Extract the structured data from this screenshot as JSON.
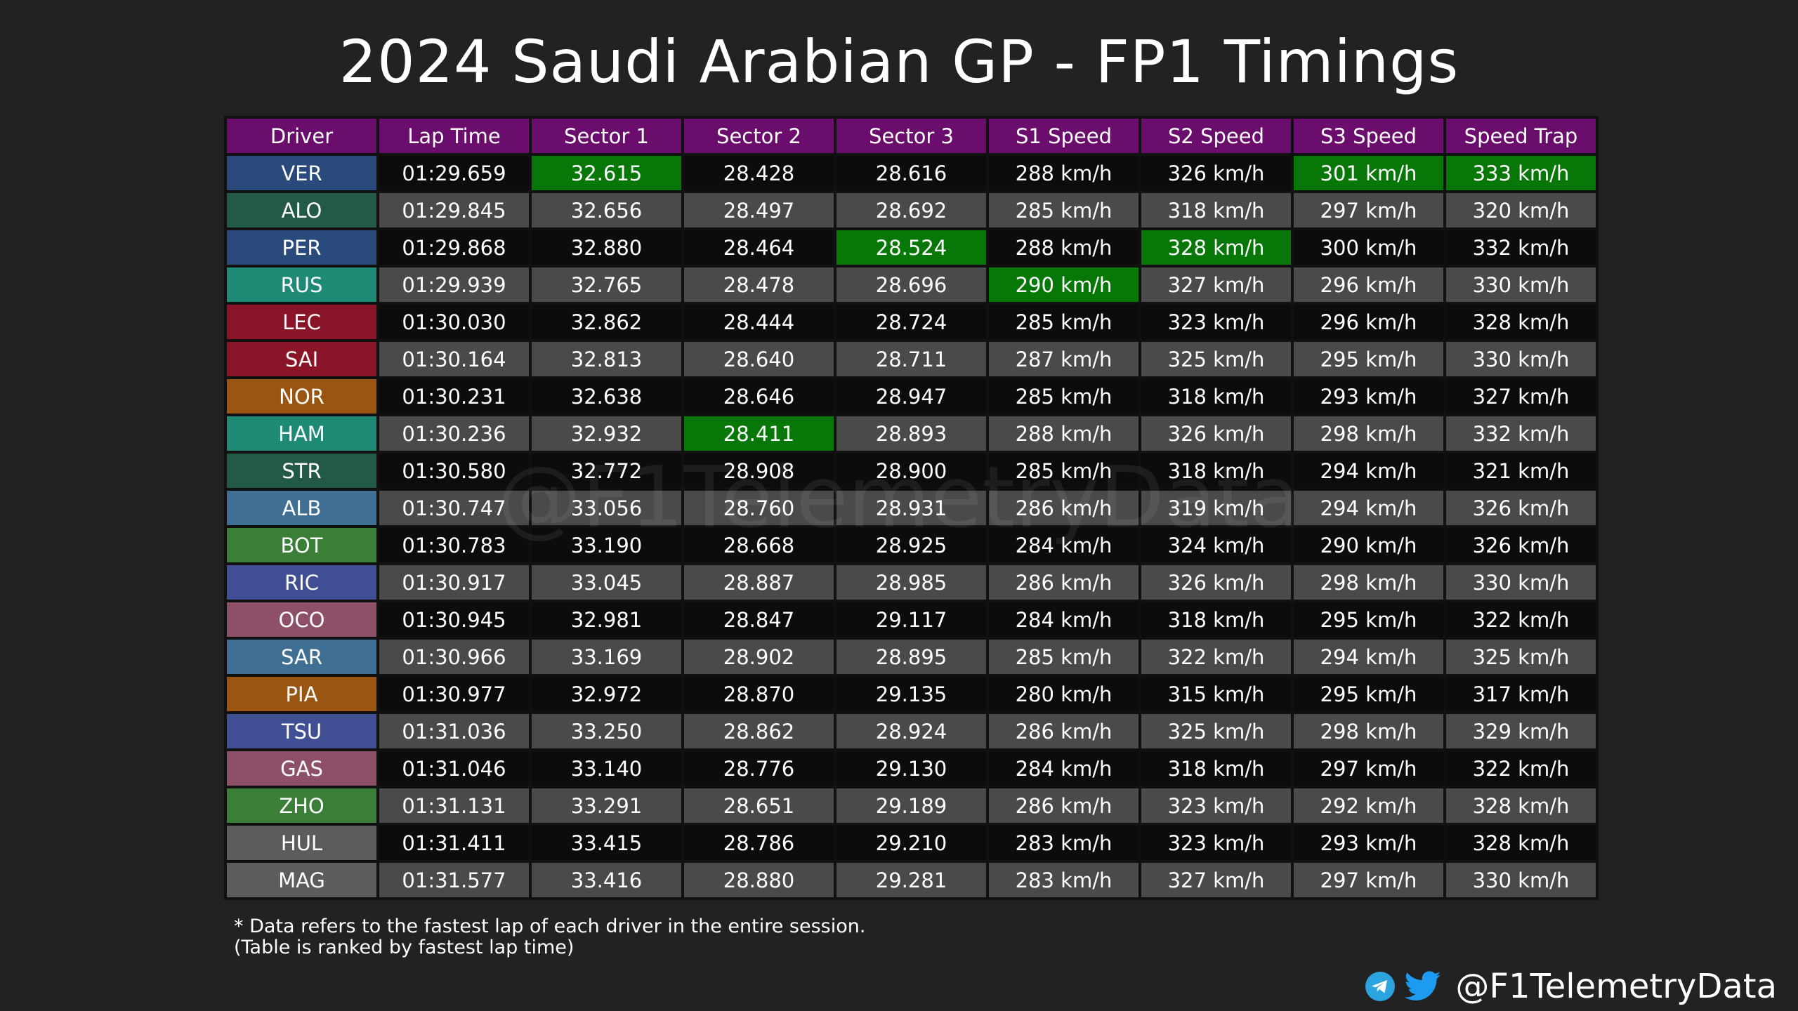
{
  "title": "2024 Saudi Arabian GP - FP1 Timings",
  "watermark": "@F1TelemetryData",
  "footnote": {
    "line1": "* Data refers to the fastest lap of each driver in the entire session.",
    "line2": "(Table is ranked by fastest lap time)"
  },
  "social": {
    "handle": "@F1TelemetryData",
    "icons": [
      "telegram-icon",
      "twitter-icon"
    ]
  },
  "colors": {
    "background": "#222222",
    "header": "#6a0d6c",
    "best": "#077807",
    "row_dark": "#0c0c0c",
    "row_light": "#4a4a4a"
  },
  "chart_data": {
    "type": "table",
    "title": "2024 Saudi Arabian GP - FP1 Timings",
    "columns": [
      "Driver",
      "Lap Time",
      "Sector 1",
      "Sector 2",
      "Sector 3",
      "S1 Speed",
      "S2 Speed",
      "S3 Speed",
      "Speed Trap"
    ],
    "rows": [
      {
        "cells": [
          "VER",
          "01:29.659",
          "32.615",
          "28.428",
          "28.616",
          "288 km/h",
          "326 km/h",
          "301 km/h",
          "333 km/h"
        ],
        "team_color": "#2b4a7c",
        "best": [
          2,
          7,
          8
        ]
      },
      {
        "cells": [
          "ALO",
          "01:29.845",
          "32.656",
          "28.497",
          "28.692",
          "285 km/h",
          "318 km/h",
          "297 km/h",
          "320 km/h"
        ],
        "team_color": "#225a46",
        "best": []
      },
      {
        "cells": [
          "PER",
          "01:29.868",
          "32.880",
          "28.464",
          "28.524",
          "288 km/h",
          "328 km/h",
          "300 km/h",
          "332 km/h"
        ],
        "team_color": "#2b4a7c",
        "best": [
          4,
          6
        ]
      },
      {
        "cells": [
          "RUS",
          "01:29.939",
          "32.765",
          "28.478",
          "28.696",
          "290 km/h",
          "327 km/h",
          "296 km/h",
          "330 km/h"
        ],
        "team_color": "#1e8a76",
        "best": [
          5
        ]
      },
      {
        "cells": [
          "LEC",
          "01:30.030",
          "32.862",
          "28.444",
          "28.724",
          "285 km/h",
          "323 km/h",
          "296 km/h",
          "328 km/h"
        ],
        "team_color": "#8a1528",
        "best": []
      },
      {
        "cells": [
          "SAI",
          "01:30.164",
          "32.813",
          "28.640",
          "28.711",
          "287 km/h",
          "325 km/h",
          "295 km/h",
          "330 km/h"
        ],
        "team_color": "#8a1528",
        "best": []
      },
      {
        "cells": [
          "NOR",
          "01:30.231",
          "32.638",
          "28.646",
          "28.947",
          "285 km/h",
          "318 km/h",
          "293 km/h",
          "327 km/h"
        ],
        "team_color": "#9a5512",
        "best": []
      },
      {
        "cells": [
          "HAM",
          "01:30.236",
          "32.932",
          "28.411",
          "28.893",
          "288 km/h",
          "326 km/h",
          "298 km/h",
          "332 km/h"
        ],
        "team_color": "#1e8a76",
        "best": [
          3
        ]
      },
      {
        "cells": [
          "STR",
          "01:30.580",
          "32.772",
          "28.908",
          "28.900",
          "285 km/h",
          "318 km/h",
          "294 km/h",
          "321 km/h"
        ],
        "team_color": "#225a46",
        "best": []
      },
      {
        "cells": [
          "ALB",
          "01:30.747",
          "33.056",
          "28.760",
          "28.931",
          "286 km/h",
          "319 km/h",
          "294 km/h",
          "326 km/h"
        ],
        "team_color": "#3f6f93",
        "best": []
      },
      {
        "cells": [
          "BOT",
          "01:30.783",
          "33.190",
          "28.668",
          "28.925",
          "284 km/h",
          "324 km/h",
          "290 km/h",
          "326 km/h"
        ],
        "team_color": "#3a7e38",
        "best": []
      },
      {
        "cells": [
          "RIC",
          "01:30.917",
          "33.045",
          "28.887",
          "28.985",
          "286 km/h",
          "326 km/h",
          "298 km/h",
          "330 km/h"
        ],
        "team_color": "#404f94",
        "best": []
      },
      {
        "cells": [
          "OCO",
          "01:30.945",
          "32.981",
          "28.847",
          "29.117",
          "284 km/h",
          "318 km/h",
          "295 km/h",
          "322 km/h"
        ],
        "team_color": "#8e5069",
        "best": []
      },
      {
        "cells": [
          "SAR",
          "01:30.966",
          "33.169",
          "28.902",
          "28.895",
          "285 km/h",
          "322 km/h",
          "294 km/h",
          "325 km/h"
        ],
        "team_color": "#3f6f93",
        "best": []
      },
      {
        "cells": [
          "PIA",
          "01:30.977",
          "32.972",
          "28.870",
          "29.135",
          "280 km/h",
          "315 km/h",
          "295 km/h",
          "317 km/h"
        ],
        "team_color": "#9a5512",
        "best": []
      },
      {
        "cells": [
          "TSU",
          "01:31.036",
          "33.250",
          "28.862",
          "28.924",
          "286 km/h",
          "325 km/h",
          "298 km/h",
          "329 km/h"
        ],
        "team_color": "#404f94",
        "best": []
      },
      {
        "cells": [
          "GAS",
          "01:31.046",
          "33.140",
          "28.776",
          "29.130",
          "284 km/h",
          "318 km/h",
          "297 km/h",
          "322 km/h"
        ],
        "team_color": "#8e5069",
        "best": []
      },
      {
        "cells": [
          "ZHO",
          "01:31.131",
          "33.291",
          "28.651",
          "29.189",
          "286 km/h",
          "323 km/h",
          "292 km/h",
          "328 km/h"
        ],
        "team_color": "#3a7e38",
        "best": []
      },
      {
        "cells": [
          "HUL",
          "01:31.411",
          "33.415",
          "28.786",
          "29.210",
          "283 km/h",
          "323 km/h",
          "293 km/h",
          "328 km/h"
        ],
        "team_color": "#5c5c5c",
        "best": []
      },
      {
        "cells": [
          "MAG",
          "01:31.577",
          "33.416",
          "28.880",
          "29.281",
          "283 km/h",
          "327 km/h",
          "297 km/h",
          "330 km/h"
        ],
        "team_color": "#5c5c5c",
        "best": []
      }
    ]
  }
}
